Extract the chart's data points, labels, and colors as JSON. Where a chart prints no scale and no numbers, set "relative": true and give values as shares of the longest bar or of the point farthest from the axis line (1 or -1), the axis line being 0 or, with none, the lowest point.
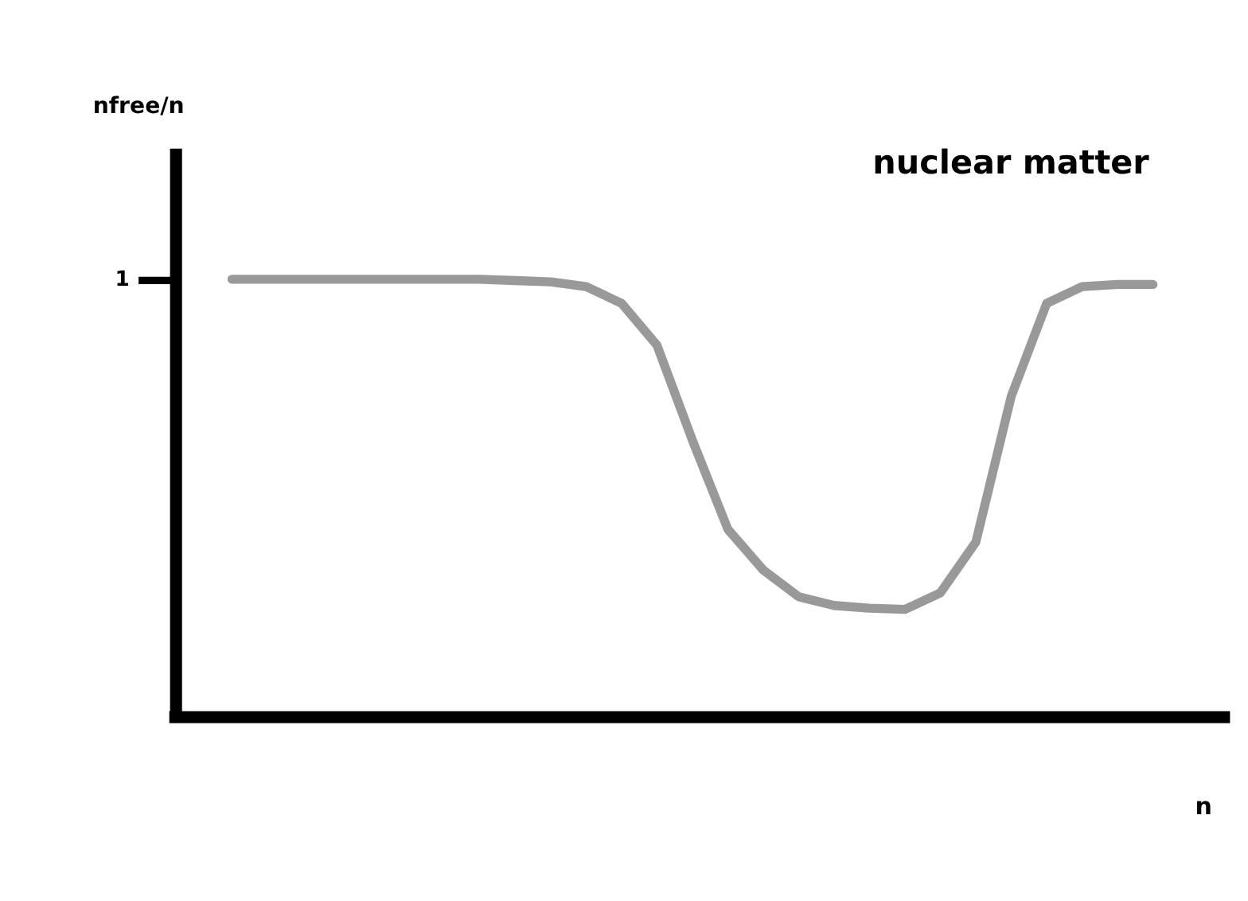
{
  "chart_data": {
    "type": "line",
    "relative": true,
    "title": "nuclear matter",
    "xlabel": "n",
    "categories": [
      null,
      null,
      null,
      null,
      null,
      null,
      null,
      null,
      null,
      null,
      null,
      null,
      null,
      null,
      null,
      null,
      null,
      null,
      null,
      null,
      null,
      null,
      null,
      null,
      null,
      null,
      null
    ],
    "series": [
      {
        "color": "#999999",
        "values": [
          1.0,
          1.0,
          1.0,
          1.0,
          1.0,
          1.0,
          1.0,
          1.0,
          0.997,
          0.994,
          0.983,
          0.945,
          0.849,
          0.632,
          0.429,
          0.336,
          0.275,
          0.255,
          0.249,
          0.246,
          0.284,
          0.4,
          0.733,
          0.945,
          0.983,
          0.988,
          0.988
        ]
      }
    ],
    "annotations": [
      "nfree/n",
      "1"
    ]
  }
}
